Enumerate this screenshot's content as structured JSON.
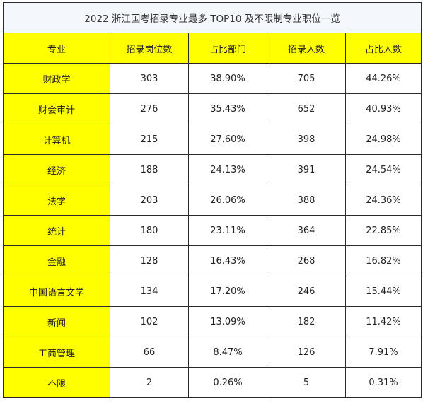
{
  "table": {
    "title": "2022 浙江国考招录专业最多 TOP10 及不限制专业职位一览",
    "headers": [
      "专业",
      "招录岗位数",
      "占比部门",
      "招录人数",
      "占比人数"
    ],
    "rows": [
      [
        "财政学",
        "303",
        "38.90%",
        "705",
        "44.26%"
      ],
      [
        "财会审计",
        "276",
        "35.43%",
        "652",
        "40.93%"
      ],
      [
        "计算机",
        "215",
        "27.60%",
        "398",
        "24.98%"
      ],
      [
        "经济",
        "188",
        "24.13%",
        "391",
        "24.54%"
      ],
      [
        "法学",
        "203",
        "26.06%",
        "388",
        "24.36%"
      ],
      [
        "统计",
        "180",
        "23.11%",
        "364",
        "22.85%"
      ],
      [
        "金融",
        "128",
        "16.43%",
        "268",
        "16.82%"
      ],
      [
        "中国语言文学",
        "134",
        "17.20%",
        "246",
        "15.44%"
      ],
      [
        "新闻",
        "102",
        "13.09%",
        "182",
        "11.42%"
      ],
      [
        "工商管理",
        "66",
        "8.47%",
        "126",
        "7.91%"
      ],
      [
        "不限",
        "2",
        "0.26%",
        "5",
        "0.31%"
      ]
    ]
  },
  "colors": {
    "header_bg": "#ffff00",
    "title_bg": "#f4f7fb",
    "border": "#2b2b2b"
  }
}
